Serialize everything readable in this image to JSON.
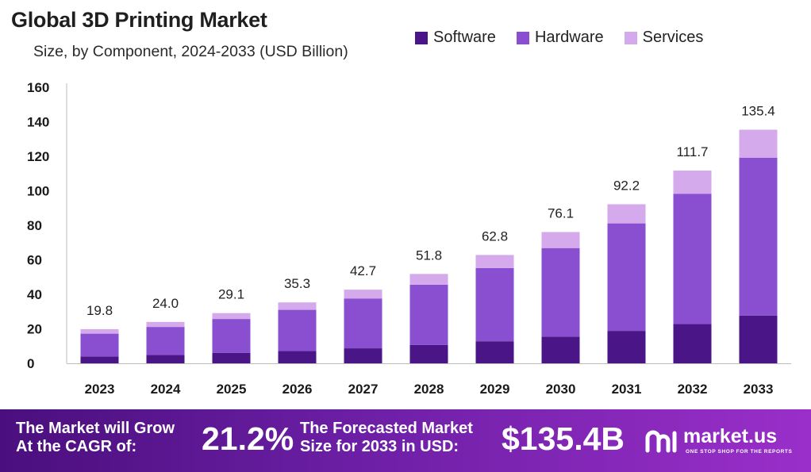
{
  "colors": {
    "software": "#4a1586",
    "hardware": "#8a4fd0",
    "services": "#d4aaed"
  },
  "chart_data": {
    "type": "bar",
    "stacked": true,
    "title": "Global 3D Printing Market",
    "subtitle": "Size, by Component, 2024-2033 (USD Billion)",
    "categories": [
      "2023",
      "2024",
      "2025",
      "2026",
      "2027",
      "2028",
      "2029",
      "2030",
      "2031",
      "2032",
      "2033"
    ],
    "series": [
      {
        "name": "Software",
        "values": [
          4.0,
          4.9,
          6.0,
          7.2,
          8.7,
          10.6,
          12.8,
          15.5,
          18.8,
          22.8,
          27.7
        ]
      },
      {
        "name": "Hardware",
        "values": [
          13.2,
          16.2,
          19.7,
          23.8,
          28.9,
          35.0,
          42.4,
          51.3,
          62.3,
          75.5,
          91.5
        ]
      },
      {
        "name": "Services",
        "values": [
          2.6,
          2.9,
          3.4,
          4.3,
          5.1,
          6.2,
          7.6,
          9.3,
          11.1,
          13.4,
          16.2
        ]
      }
    ],
    "totals": [
      "19.8",
      "24.0",
      "29.1",
      "35.3",
      "42.7",
      "51.8",
      "62.8",
      "76.1",
      "92.2",
      "111.7",
      "135.4"
    ],
    "yticks": [
      0,
      20,
      40,
      60,
      80,
      100,
      120,
      140,
      160
    ],
    "ylim": [
      0,
      160
    ],
    "legend_position": "top-right",
    "grid": false
  },
  "footer": {
    "grow_line1": "The Market will Grow",
    "grow_line2": "At the CAGR of:",
    "cagr": "21.2%",
    "forecast_line1": "The Forecasted Market",
    "forecast_line2": "Size for 2033 in USD:",
    "forecast_value": "$135.4B",
    "brand": "market.us",
    "tagline": "ONE STOP SHOP FOR THE REPORTS"
  },
  "icons": {
    "brand_logo": "market-us-logo-icon"
  }
}
